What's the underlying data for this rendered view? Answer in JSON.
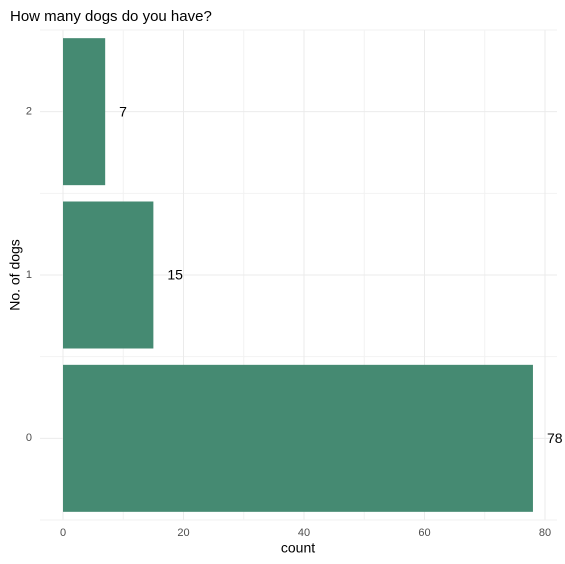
{
  "chart_data": {
    "type": "bar",
    "orientation": "horizontal",
    "title": "How many dogs do you have?",
    "x_label": "count",
    "y_label": "No. of dogs",
    "categories": [
      "0",
      "1",
      "2"
    ],
    "values": [
      78,
      15,
      7
    ],
    "color": "#458a72",
    "xlim": [
      0,
      80
    ],
    "xticks": [
      0,
      20,
      40,
      60,
      80
    ],
    "grid": true
  }
}
